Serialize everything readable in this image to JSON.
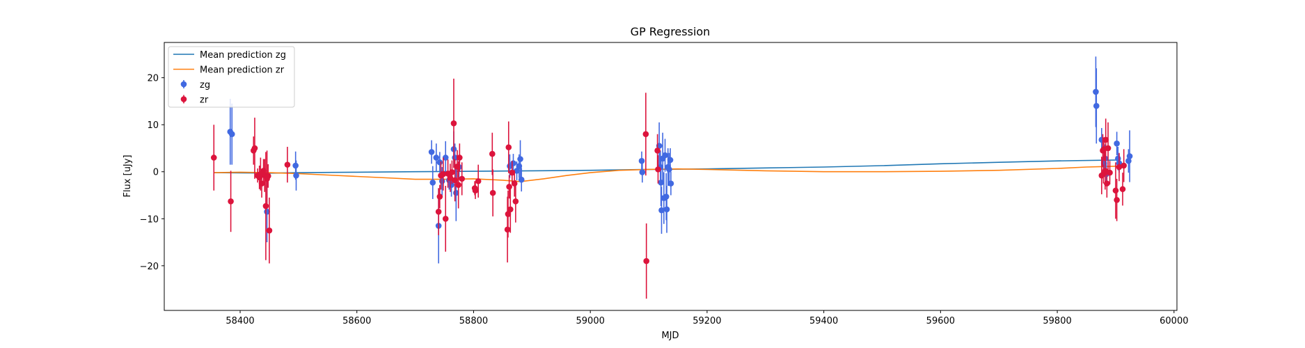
{
  "chart_data": {
    "type": "scatter",
    "title": "GP Regression",
    "xlabel": "MJD",
    "ylabel": "Flux [uJy]",
    "xlim": [
      58270,
      60005
    ],
    "ylim": [
      -29.5,
      27.5
    ],
    "xticks": [
      58400,
      58600,
      58800,
      59000,
      59200,
      59400,
      59600,
      59800,
      60000
    ],
    "yticks": [
      -20,
      -10,
      0,
      10,
      20
    ],
    "legend": {
      "placement": "top-left",
      "entries": [
        "Mean prediction zg",
        "Mean prediction zr",
        "zg",
        "zr"
      ]
    },
    "grid": false,
    "series": [
      {
        "name": "Mean prediction zg",
        "kind": "line",
        "color": "#1f77b4",
        "x": [
          58355,
          58450,
          58500,
          58600,
          58700,
          58800,
          58900,
          59000,
          59100,
          59200,
          59300,
          59400,
          59500,
          59600,
          59700,
          59800,
          59900
        ],
        "y": [
          -0.2,
          -0.3,
          -0.2,
          -0.1,
          0.0,
          0.1,
          0.2,
          0.3,
          0.5,
          0.6,
          0.8,
          1.0,
          1.3,
          1.7,
          2.0,
          2.3,
          2.5
        ]
      },
      {
        "name": "Mean prediction zr",
        "kind": "line",
        "color": "#ff7f0e",
        "x": [
          58355,
          58400,
          58450,
          58500,
          58550,
          58600,
          58650,
          58700,
          58750,
          58800,
          58850,
          58880,
          58920,
          58960,
          59000,
          59050,
          59100,
          59150,
          59200,
          59300,
          59400,
          59500,
          59600,
          59700,
          59800,
          59850,
          59880,
          59910
        ],
        "y": [
          -0.2,
          -0.1,
          -0.2,
          -0.4,
          -0.7,
          -1.0,
          -1.3,
          -1.6,
          -1.6,
          -1.5,
          -1.8,
          -2.1,
          -1.5,
          -0.8,
          -0.2,
          0.3,
          0.5,
          0.6,
          0.5,
          0.2,
          0.0,
          0.0,
          0.1,
          0.3,
          0.7,
          1.0,
          1.1,
          1.2
        ]
      },
      {
        "name": "zg",
        "kind": "errorbar",
        "color": "#4169e1",
        "points": [
          [
            58383,
            8.5,
            7.0
          ],
          [
            58386,
            8.0,
            6.5
          ],
          [
            58446,
            -8.5,
            6.5
          ],
          [
            58495,
            1.3,
            3.0
          ],
          [
            58496,
            -0.8,
            3.2
          ],
          [
            58728,
            4.2,
            2.5
          ],
          [
            58730,
            -2.3,
            3.5
          ],
          [
            58736,
            3.0,
            3.0
          ],
          [
            58740,
            -11.5,
            8.0
          ],
          [
            58742,
            2.0,
            2.2
          ],
          [
            58746,
            -2.0,
            3.0
          ],
          [
            58752,
            3.0,
            3.5
          ],
          [
            58758,
            -1.8,
            2.0
          ],
          [
            58762,
            -2.8,
            2.5
          ],
          [
            58766,
            4.8,
            3.8
          ],
          [
            58768,
            3.0,
            3.0
          ],
          [
            58770,
            -4.5,
            6.0
          ],
          [
            58775,
            1.0,
            2.5
          ],
          [
            58862,
            1.2,
            2.5
          ],
          [
            58868,
            1.8,
            2.0
          ],
          [
            58874,
            0.2,
            2.0
          ],
          [
            58878,
            1.2,
            2.5
          ],
          [
            58880,
            2.7,
            4.0
          ],
          [
            58882,
            -1.7,
            2.5
          ],
          [
            59088,
            2.3,
            2.0
          ],
          [
            59089,
            -0.1,
            2.2
          ],
          [
            59118,
            5.5,
            5.0
          ],
          [
            59120,
            1.0,
            3.5
          ],
          [
            59121,
            -2.3,
            5.0
          ],
          [
            59122,
            -8.2,
            5.0
          ],
          [
            59124,
            2.8,
            5.5
          ],
          [
            59126,
            -5.6,
            5.5
          ],
          [
            59128,
            3.5,
            3.5
          ],
          [
            59130,
            -5.3,
            5.0
          ],
          [
            59131,
            -8.0,
            5.0
          ],
          [
            59133,
            1.0,
            4.0
          ],
          [
            59135,
            0.5,
            3.5
          ],
          [
            59137,
            2.5,
            2.5
          ],
          [
            59138,
            -2.5,
            2.5
          ],
          [
            59866,
            17.0,
            7.5
          ],
          [
            59867,
            14.0,
            8.0
          ],
          [
            59876,
            6.8,
            2.5
          ],
          [
            59880,
            1.8,
            2.0
          ],
          [
            59882,
            2.8,
            3.0
          ],
          [
            59884,
            -0.5,
            2.0
          ],
          [
            59902,
            6.0,
            2.5
          ],
          [
            59904,
            2.8,
            2.5
          ],
          [
            59906,
            1.8,
            2.0
          ],
          [
            59922,
            2.3,
            2.5
          ],
          [
            59924,
            3.3,
            5.5
          ]
        ]
      },
      {
        "name": "zr",
        "kind": "errorbar",
        "color": "#dc143c",
        "points": [
          [
            58355,
            3.0,
            7.0
          ],
          [
            58384,
            -6.3,
            6.5
          ],
          [
            58423,
            4.5,
            3.0
          ],
          [
            58425,
            5.0,
            6.5
          ],
          [
            58430,
            -0.8,
            1.5
          ],
          [
            58433,
            -1.2,
            2.5
          ],
          [
            58435,
            -0.5,
            3.5
          ],
          [
            58437,
            -2.5,
            3.0
          ],
          [
            58440,
            0.2,
            2.5
          ],
          [
            58442,
            -0.8,
            3.5
          ],
          [
            58444,
            -7.3,
            11.5
          ],
          [
            58446,
            -1.5,
            6.0
          ],
          [
            58448,
            -0.9,
            2.5
          ],
          [
            58450,
            -12.5,
            7.0
          ],
          [
            58481,
            1.5,
            3.8
          ],
          [
            58740,
            -8.5,
            5.0
          ],
          [
            58742,
            -5.3,
            2.5
          ],
          [
            58744,
            -0.8,
            3.0
          ],
          [
            58748,
            -0.5,
            3.5
          ],
          [
            58752,
            -10.0,
            7.0
          ],
          [
            58756,
            -0.4,
            3.0
          ],
          [
            58760,
            -1.3,
            3.0
          ],
          [
            58763,
            -0.1,
            2.5
          ],
          [
            58766,
            10.3,
            9.5
          ],
          [
            58768,
            -1.8,
            4.5
          ],
          [
            58772,
            1.1,
            3.5
          ],
          [
            58774,
            -2.8,
            5.0
          ],
          [
            58776,
            3.0,
            3.0
          ],
          [
            58780,
            -1.5,
            3.5
          ],
          [
            58802,
            -3.5,
            1.5
          ],
          [
            58803,
            -4.0,
            1.8
          ],
          [
            58808,
            -2.0,
            3.5
          ],
          [
            58832,
            3.8,
            4.5
          ],
          [
            58833,
            -4.5,
            5.0
          ],
          [
            58858,
            -12.3,
            7.0
          ],
          [
            58859,
            -9.0,
            5.0
          ],
          [
            58860,
            5.2,
            5.5
          ],
          [
            58861,
            -3.2,
            2.5
          ],
          [
            58863,
            -8.0,
            5.0
          ],
          [
            58866,
            -0.2,
            2.5
          ],
          [
            58870,
            -2.5,
            2.8
          ],
          [
            58872,
            -6.3,
            4.5
          ],
          [
            59095,
            8.0,
            8.8
          ],
          [
            59096,
            -19.0,
            8.0
          ],
          [
            59115,
            4.5,
            3.5
          ],
          [
            59116,
            0.5,
            3.0
          ],
          [
            59876,
            -0.8,
            4.0
          ],
          [
            59878,
            4.5,
            3.5
          ],
          [
            59879,
            -0.5,
            2.0
          ],
          [
            59880,
            4.8,
            2.5
          ],
          [
            59882,
            0.2,
            4.0
          ],
          [
            59883,
            6.8,
            4.5
          ],
          [
            59885,
            -2.5,
            3.0
          ],
          [
            59887,
            5.0,
            5.5
          ],
          [
            59890,
            -0.2,
            2.5
          ],
          [
            59900,
            -4.0,
            6.0
          ],
          [
            59902,
            -6.0,
            4.5
          ],
          [
            59906,
            1.0,
            3.0
          ],
          [
            59912,
            -3.7,
            3.5
          ],
          [
            59914,
            1.3,
            3.5
          ]
        ]
      }
    ]
  }
}
